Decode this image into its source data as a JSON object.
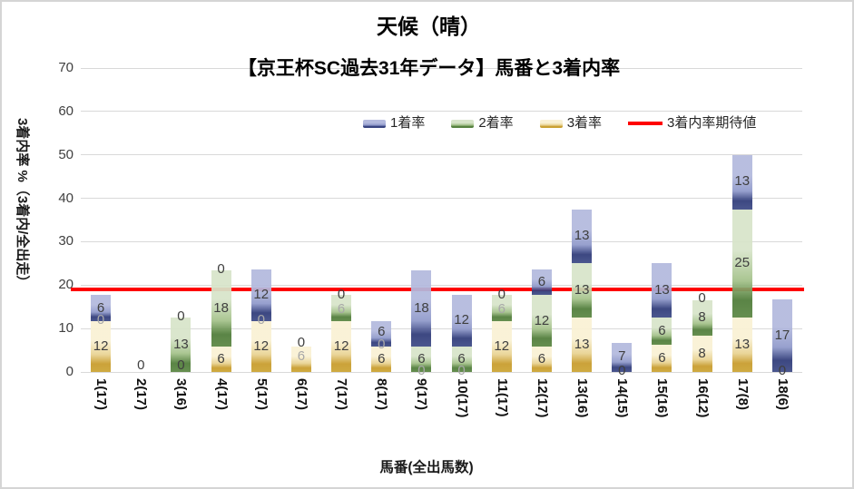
{
  "title": "天候（晴）",
  "subtitle": "【京王杯SC過去31年データ】馬番と3着内率",
  "legend": {
    "items": [
      {
        "label": "1着率",
        "series": "rank1",
        "type": "swatch"
      },
      {
        "label": "2着率",
        "series": "rank2",
        "type": "swatch"
      },
      {
        "label": "3着率",
        "series": "rank3",
        "type": "swatch"
      },
      {
        "label": "3着内率期待値",
        "series": "expected",
        "type": "line"
      }
    ]
  },
  "colors": {
    "grid": "#d9d9d9",
    "expected_line": "#fe0000",
    "label": "#3f3f3f",
    "label_muted": "#a8a8a8",
    "series": {
      "rank1": {
        "light": "#b3b9dd",
        "mid": "#8f99ca",
        "dark": "#2e3a78",
        "end": "#3d4a86"
      },
      "rank2": {
        "light": "#d7e4c9",
        "mid": "#a3c189",
        "dark": "#4e7b38",
        "end": "#5a8642"
      },
      "rank3": {
        "light": "#f9f1d4",
        "mid": "#e8d291",
        "dark": "#c79b2b",
        "end": "#cba433"
      }
    }
  },
  "chart_data": {
    "type": "bar",
    "stacked": true,
    "title": "天候（晴）",
    "subtitle": "【京王杯SC過去31年データ】馬番と3着内率",
    "xlabel": "馬番(全出馬数)",
    "ylabel": "3着内率 %（3着内/全出走）",
    "ylim": [
      0,
      70
    ],
    "yticks": [
      0,
      10,
      20,
      30,
      40,
      50,
      60,
      70
    ],
    "grid": true,
    "legend_position": "upper-right-inside",
    "categories": [
      "1(17)",
      "2(17)",
      "3(16)",
      "4(17)",
      "5(17)",
      "6(17)",
      "7(17)",
      "8(17)",
      "9(17)",
      "10(17)",
      "11(17)",
      "12(17)",
      "13(16)",
      "14(15)",
      "15(16)",
      "16(12)",
      "17(8)",
      "18(6)"
    ],
    "series": [
      {
        "name": "3着率",
        "key": "rank3",
        "values": [
          11.8,
          0,
          0,
          5.9,
          11.8,
          5.9,
          11.8,
          5.9,
          0,
          0,
          11.8,
          5.9,
          12.5,
          0,
          6.25,
          8.3,
          12.5,
          0
        ]
      },
      {
        "name": "2着率",
        "key": "rank2",
        "values": [
          0,
          0,
          12.5,
          17.6,
          0,
          0,
          5.9,
          0,
          5.9,
          5.9,
          5.9,
          11.8,
          12.5,
          0,
          6.25,
          8.3,
          25,
          0
        ]
      },
      {
        "name": "1着率",
        "key": "rank1",
        "values": [
          5.9,
          0,
          0,
          0,
          11.8,
          0,
          0,
          5.9,
          17.6,
          11.8,
          0,
          5.9,
          12.5,
          6.7,
          12.5,
          0,
          12.5,
          16.7
        ]
      }
    ],
    "expected_line": {
      "name": "3着内率期待値",
      "value": 19.0
    },
    "bar_labels": [
      [
        {
          "t": "6",
          "y": 14.7
        },
        {
          "t": "0",
          "y": 11.9,
          "m": true
        },
        {
          "t": "12",
          "y": 5.9
        }
      ],
      [
        {
          "t": "0",
          "y": 1.5
        }
      ],
      [
        {
          "t": "0",
          "y": 12.7
        },
        {
          "t": "13",
          "y": 6.25
        },
        {
          "t": "0",
          "y": 1.4
        }
      ],
      [
        {
          "t": "0",
          "y": 23.7
        },
        {
          "t": "18",
          "y": 14.7
        },
        {
          "t": "6",
          "y": 2.9
        }
      ],
      [
        {
          "t": "12",
          "y": 17.7
        },
        {
          "t": "0",
          "y": 11.9,
          "m": true
        },
        {
          "t": "12",
          "y": 5.9
        }
      ],
      [
        {
          "t": "0",
          "y": 6.7
        },
        {
          "t": "6",
          "y": 3.6,
          "m": true
        }
      ],
      [
        {
          "t": "0",
          "y": 17.8
        },
        {
          "t": "6",
          "y": 14.5,
          "m": true
        },
        {
          "t": "12",
          "y": 5.9
        }
      ],
      [
        {
          "t": "6",
          "y": 9.1
        },
        {
          "t": "0",
          "y": 6.2,
          "m": true
        },
        {
          "t": "6",
          "y": 3.0
        }
      ],
      [
        {
          "t": "18",
          "y": 14.6
        },
        {
          "t": "6",
          "y": 3.0
        },
        {
          "t": "0",
          "y": 0.3,
          "m": true
        }
      ],
      [
        {
          "t": "12",
          "y": 11.9
        },
        {
          "t": "6",
          "y": 3.0
        },
        {
          "t": "0",
          "y": 0.3,
          "m": true
        }
      ],
      [
        {
          "t": "0",
          "y": 17.8
        },
        {
          "t": "6",
          "y": 14.5,
          "m": true
        },
        {
          "t": "12",
          "y": 5.9
        }
      ],
      [
        {
          "t": "6",
          "y": 20.6
        },
        {
          "t": "12",
          "y": 11.8
        },
        {
          "t": "6",
          "y": 2.9
        }
      ],
      [
        {
          "t": "13",
          "y": 31.3
        },
        {
          "t": "13",
          "y": 18.9
        },
        {
          "t": "13",
          "y": 6.25
        }
      ],
      [
        {
          "t": "7",
          "y": 3.5
        },
        {
          "t": "0",
          "y": 0.3
        }
      ],
      [
        {
          "t": "13",
          "y": 18.9
        },
        {
          "t": "6",
          "y": 9.4
        },
        {
          "t": "6",
          "y": 3.1
        }
      ],
      [
        {
          "t": "0",
          "y": 16.9
        },
        {
          "t": "8",
          "y": 12.5
        },
        {
          "t": "8",
          "y": 4.2
        }
      ],
      [
        {
          "t": "13",
          "y": 43.8
        },
        {
          "t": "25",
          "y": 25.0
        },
        {
          "t": "13",
          "y": 6.25
        }
      ],
      [
        {
          "t": "17",
          "y": 8.3
        },
        {
          "t": "0",
          "y": 0.3
        }
      ]
    ]
  }
}
